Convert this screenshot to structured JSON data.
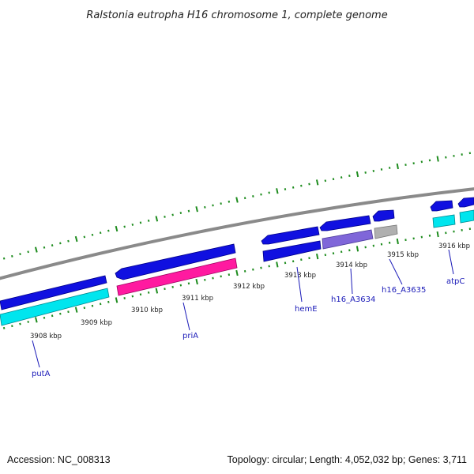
{
  "title": "Ralstonia eutropha H16 chromosome 1, complete genome",
  "footer": {
    "accession": "Accession: NC_008313",
    "summary": "Topology: circular; Length: 4,052,032 bp; Genes: 3,711"
  },
  "colors": {
    "backbone": "#8a8a8a",
    "tick": "#1e8c1e",
    "forward_gene": "#1010e0",
    "cyan_cds": "#00e5ee",
    "pink_cds": "#ff1aa0",
    "purple_cds": "#7f66d9",
    "grey_cds": "#b0b0b0",
    "label": "#1a1ab8"
  },
  "map": {
    "kbp_labels": [
      "3908 kbp",
      "3909 kbp",
      "3910 kbp",
      "3911 kbp",
      "3912 kbp",
      "3913 kbp",
      "3914 kbp",
      "3915 kbp",
      "3916 kbp"
    ],
    "genes": [
      {
        "name": "putA"
      },
      {
        "name": "priA"
      },
      {
        "name": "hemE"
      },
      {
        "name": "h16_A3634"
      },
      {
        "name": "h16_A3635"
      },
      {
        "name": "atpC"
      }
    ]
  }
}
